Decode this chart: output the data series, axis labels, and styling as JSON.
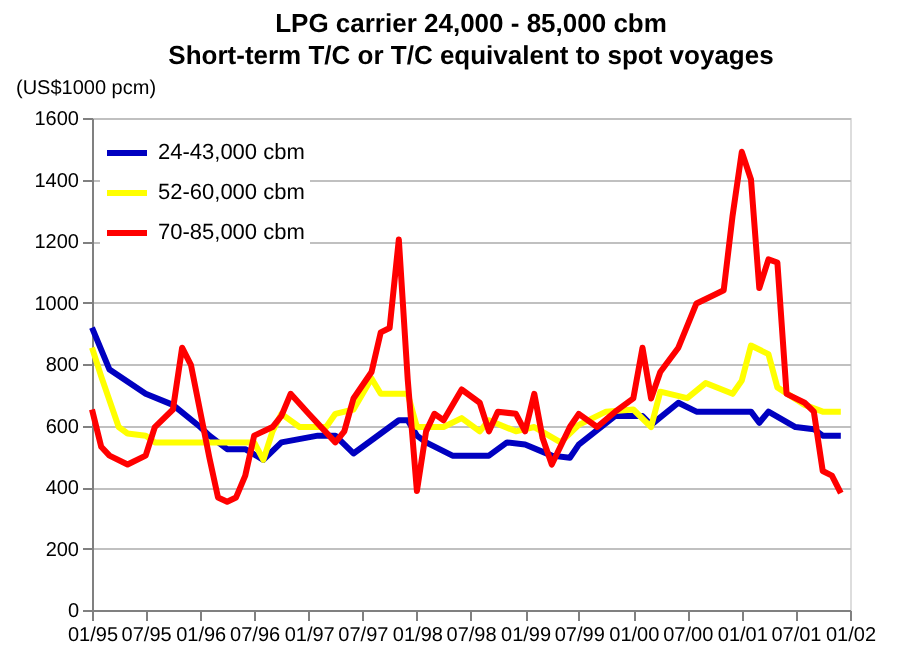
{
  "chart_data": {
    "type": "line",
    "title": "LPG carrier 24,000 - 85,000 cbm",
    "subtitle": "Short-term T/C or T/C equivalent to spot voyages",
    "ylabel": "(US$1000 pcm)",
    "xlim": [
      "1995-01",
      "2002-01"
    ],
    "xticks": [
      {
        "value": "1995-01",
        "label": "01/95"
      },
      {
        "value": "1995-07",
        "label": "07/95"
      },
      {
        "value": "1996-01",
        "label": "01/96"
      },
      {
        "value": "1996-07",
        "label": "07/96"
      },
      {
        "value": "1997-01",
        "label": "01/97"
      },
      {
        "value": "1997-07",
        "label": "07/97"
      },
      {
        "value": "1998-01",
        "label": "01/98"
      },
      {
        "value": "1998-07",
        "label": "07/98"
      },
      {
        "value": "1999-01",
        "label": "01/99"
      },
      {
        "value": "1999-07",
        "label": "07/99"
      },
      {
        "value": "2000-01",
        "label": "01/00"
      },
      {
        "value": "2000-07",
        "label": "07/00"
      },
      {
        "value": "2001-01",
        "label": "01/01"
      },
      {
        "value": "2001-07",
        "label": "07/01"
      },
      {
        "value": "2002-01",
        "label": "01/02"
      }
    ],
    "ylim": [
      0,
      1600
    ],
    "yticks": [
      0,
      200,
      400,
      600,
      800,
      1000,
      1200,
      1400,
      1600
    ],
    "grid": "y",
    "legend": "top left",
    "line_style": "solid",
    "series": [
      {
        "name": "24-43,000 cbm",
        "color": "#0000c0",
        "x": [
          "1995-01",
          "1995-03",
          "1995-07",
          "1995-10",
          "1996-01",
          "1996-02",
          "1996-04",
          "1996-06",
          "1996-08",
          "1996-10",
          "1997-02",
          "1997-04",
          "1997-06",
          "1997-09",
          "1997-11",
          "1997-12",
          "1998-01",
          "1998-02",
          "1998-05",
          "1998-09",
          "1998-11",
          "1999-01",
          "1999-04",
          "1999-06",
          "1999-07",
          "1999-11",
          "2000-02",
          "2000-03",
          "2000-06",
          "2000-08",
          "2000-11",
          "2001-02",
          "2001-03",
          "2001-04",
          "2001-07",
          "2001-09",
          "2001-10",
          "2001-12"
        ],
        "values": [
          918,
          782,
          703,
          667,
          595,
          567,
          523,
          523,
          488,
          545,
          567,
          567,
          509,
          574,
          617,
          617,
          567,
          545,
          502,
          502,
          545,
          538,
          502,
          495,
          538,
          631,
          631,
          602,
          674,
          645,
          645,
          645,
          609,
          645,
          595,
          588,
          567,
          567
        ]
      },
      {
        "name": "52-60,000 cbm",
        "color": "#ffff00",
        "x": [
          "1995-01",
          "1995-02",
          "1995-04",
          "1995-05",
          "1995-07",
          "1995-08",
          "1996-07",
          "1996-08",
          "1996-09",
          "1996-10",
          "1996-12",
          "1997-03",
          "1997-04",
          "1997-06",
          "1997-08",
          "1997-09",
          "1997-12",
          "1998-01",
          "1998-04",
          "1998-06",
          "1998-08",
          "1998-09",
          "1998-12",
          "1999-02",
          "1999-05",
          "1999-07",
          "1999-10",
          "2000-01",
          "2000-03",
          "2000-04",
          "2000-07",
          "2000-09",
          "2000-12",
          "2001-01",
          "2001-02",
          "2001-04",
          "2001-05",
          "2001-08",
          "2001-10",
          "2001-12"
        ],
        "values": [
          853,
          760,
          595,
          574,
          567,
          545,
          545,
          488,
          581,
          638,
          595,
          595,
          638,
          652,
          753,
          703,
          703,
          595,
          595,
          624,
          581,
          617,
          581,
          595,
          545,
          602,
          645,
          652,
          595,
          710,
          689,
          738,
          703,
          746,
          860,
          832,
          724,
          667,
          645,
          645
        ]
      },
      {
        "name": "70-85,000 cbm",
        "color": "#ff0000",
        "x": [
          "1995-01",
          "1995-02",
          "1995-03",
          "1995-05",
          "1995-07",
          "1995-08",
          "1995-10",
          "1995-11",
          "1995-12",
          "1996-02",
          "1996-03",
          "1996-04",
          "1996-05",
          "1996-06",
          "1996-07",
          "1996-09",
          "1996-10",
          "1996-11",
          "1997-01",
          "1997-04",
          "1997-05",
          "1997-06",
          "1997-08",
          "1997-09",
          "1997-10",
          "1997-11",
          "1997-12",
          "1998-01",
          "1998-02",
          "1998-03",
          "1998-04",
          "1998-06",
          "1998-08",
          "1998-09",
          "1998-10",
          "1998-12",
          "1999-01",
          "1999-02",
          "1999-03",
          "1999-04",
          "1999-06",
          "1999-07",
          "1999-09",
          "1999-11",
          "2000-01",
          "2000-02",
          "2000-03",
          "2000-04",
          "2000-06",
          "2000-08",
          "2000-10",
          "2000-11",
          "2000-12",
          "2001-01",
          "2001-02",
          "2001-03",
          "2001-04",
          "2001-05",
          "2001-06",
          "2001-08",
          "2001-09",
          "2001-10",
          "2001-11",
          "2001-12"
        ],
        "values": [
          652,
          531,
          502,
          473,
          502,
          595,
          652,
          853,
          796,
          495,
          366,
          352,
          366,
          437,
          567,
          595,
          631,
          703,
          638,
          545,
          581,
          688,
          774,
          903,
          917,
          1205,
          750,
          387,
          581,
          638,
          617,
          717,
          674,
          581,
          645,
          638,
          581,
          703,
          559,
          473,
          595,
          638,
          595,
          645,
          688,
          853,
          688,
          774,
          853,
          997,
          1025,
          1040,
          1283,
          1490,
          1400,
          1047,
          1140,
          1130,
          703,
          674,
          645,
          452,
          437,
          380
        ]
      }
    ]
  }
}
